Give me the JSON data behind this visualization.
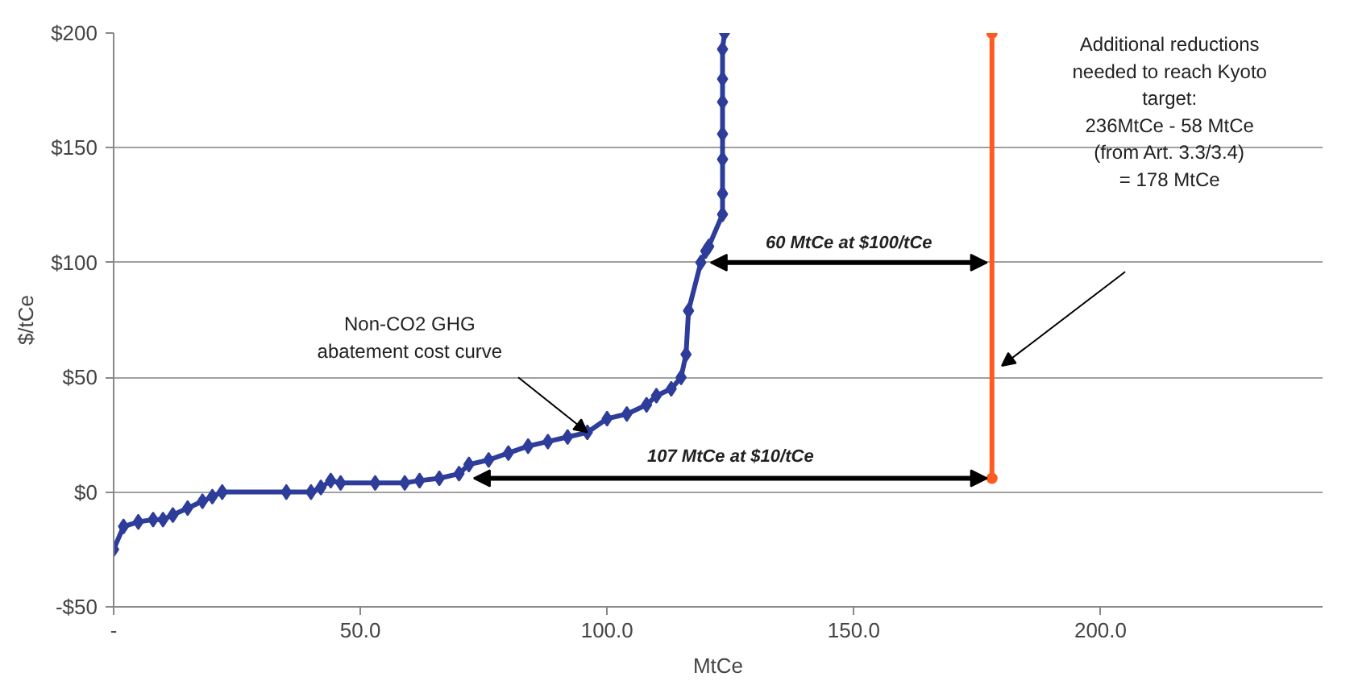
{
  "chart_data": {
    "type": "line",
    "xlabel": "MtCe",
    "ylabel": "$/tCe",
    "xlim": [
      0,
      245
    ],
    "ylim": [
      -50,
      200
    ],
    "xticks": [
      {
        "value": 0,
        "label": "-"
      },
      {
        "value": 50,
        "label": "50.0"
      },
      {
        "value": 100,
        "label": "100.0"
      },
      {
        "value": 150,
        "label": "150.0"
      },
      {
        "value": 200,
        "label": "200.0"
      }
    ],
    "yticks": [
      {
        "value": -50,
        "label": "-$50"
      },
      {
        "value": 0,
        "label": "$0"
      },
      {
        "value": 50,
        "label": "$50"
      },
      {
        "value": 100,
        "label": "$100"
      },
      {
        "value": 150,
        "label": "$150"
      },
      {
        "value": 200,
        "label": "$200"
      }
    ],
    "grid": "y",
    "marker": "diamond",
    "line_style": "solid",
    "series": [
      {
        "color": "#2e3d9a",
        "x": [
          0,
          2,
          5,
          8,
          10,
          12,
          15,
          18,
          20,
          22,
          35,
          40,
          42,
          44,
          46,
          53,
          59,
          62,
          66,
          70,
          72,
          76,
          80,
          84,
          88,
          92,
          96,
          100,
          104,
          108,
          110,
          113,
          115,
          116,
          116.5,
          119,
          120,
          120.6,
          123.4,
          123.4,
          123.4,
          123.4,
          123.4,
          123.4,
          123.4,
          123.8
        ],
        "values": [
          -25,
          -15,
          -13,
          -12,
          -12,
          -10,
          -7,
          -4,
          -2,
          0,
          0,
          0,
          2,
          5,
          4,
          4,
          4,
          5,
          6,
          8,
          12,
          14,
          17,
          20,
          22,
          24,
          26,
          32,
          34,
          38,
          42,
          45,
          50,
          60,
          79,
          100,
          105,
          107,
          121,
          130,
          145,
          156,
          170,
          180,
          193,
          200
        ]
      },
      {
        "color": "#ff5a1f",
        "marker": "circle",
        "x": [
          178,
          178
        ],
        "values": [
          6,
          200
        ]
      }
    ],
    "annotations": [
      {
        "text": "Non-CO2 GHG\nabatement cost curve",
        "x": 96,
        "y": 26
      },
      "60 MtCe at $100/tCe",
      "107 MtCe at $10/tCe",
      "Additional reductions\nneeded to reach Kyoto\ntarget:\n236MtCe - 58 MtCe\n(from Art. 3.3/3.4)\n= 178 MtCe"
    ]
  }
}
